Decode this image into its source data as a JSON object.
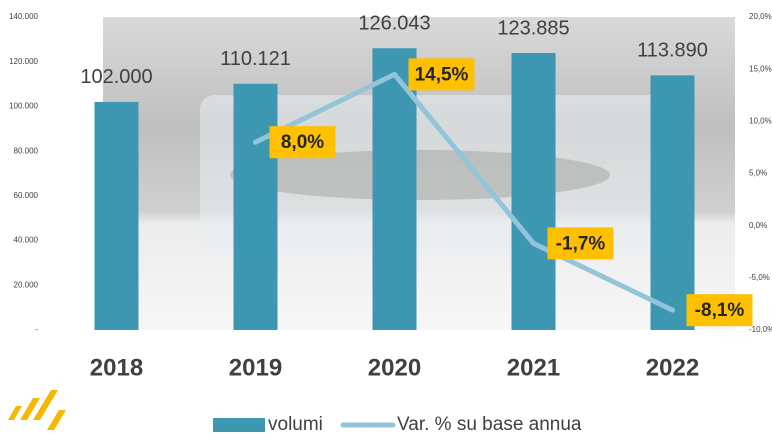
{
  "chart_data": {
    "type": "bar_line",
    "categories": [
      "2018",
      "2019",
      "2020",
      "2021",
      "2022"
    ],
    "series": [
      {
        "name": "volumi",
        "color": "#3e97b1",
        "type": "bar",
        "values": [
          102000,
          110121,
          126043,
          123885,
          113890
        ],
        "value_labels": [
          "102.000",
          "110.121",
          "126.043",
          "123.885",
          "113.890"
        ]
      },
      {
        "name": "Var. % su base annua",
        "color": "#92c5da",
        "type": "line",
        "axis": "y2",
        "values": [
          null,
          8.0,
          14.5,
          -1.7,
          -8.1
        ],
        "value_labels": [
          null,
          "8,0%",
          "14,5%",
          "-1,7%",
          "-8,1%"
        ]
      }
    ],
    "ylim": [
      0,
      140000
    ],
    "yticks": [
      {
        "value": 0,
        "label": "-"
      },
      {
        "value": 20000,
        "label": "20.000"
      },
      {
        "value": 40000,
        "label": "40.000"
      },
      {
        "value": 60000,
        "label": "60.000"
      },
      {
        "value": 80000,
        "label": "80.000"
      },
      {
        "value": 100000,
        "label": "100.000"
      },
      {
        "value": 120000,
        "label": "120.000"
      },
      {
        "value": 140000,
        "label": "140.000"
      }
    ],
    "y2lim": [
      -10,
      20
    ],
    "y2ticks": [
      {
        "value": -10,
        "label": "-10,0%"
      },
      {
        "value": -5,
        "label": "-5,0%"
      },
      {
        "value": 0,
        "label": "0,0%"
      },
      {
        "value": 5,
        "label": "5,0%"
      },
      {
        "value": 10,
        "label": "10,0%"
      },
      {
        "value": 15,
        "label": "15,0%"
      },
      {
        "value": 20,
        "label": "20,0%"
      }
    ],
    "label_box_color": "#ffc000",
    "legend": "bottom"
  }
}
